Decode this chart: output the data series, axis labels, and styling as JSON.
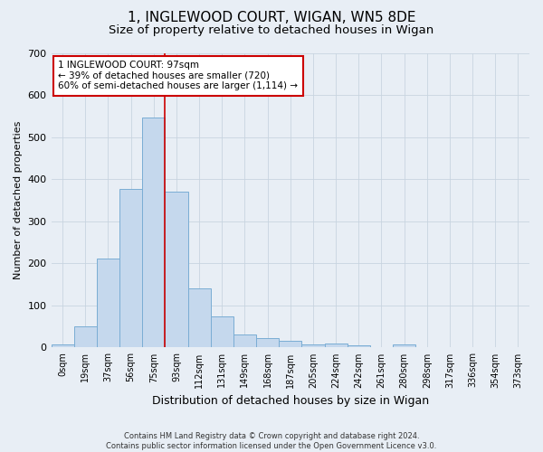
{
  "title": "1, INGLEWOOD COURT, WIGAN, WN5 8DE",
  "subtitle": "Size of property relative to detached houses in Wigan",
  "xlabel": "Distribution of detached houses by size in Wigan",
  "ylabel": "Number of detached properties",
  "bar_labels": [
    "0sqm",
    "19sqm",
    "37sqm",
    "56sqm",
    "75sqm",
    "93sqm",
    "112sqm",
    "131sqm",
    "149sqm",
    "168sqm",
    "187sqm",
    "205sqm",
    "224sqm",
    "242sqm",
    "261sqm",
    "280sqm",
    "298sqm",
    "317sqm",
    "336sqm",
    "354sqm",
    "373sqm"
  ],
  "bar_heights": [
    7,
    50,
    212,
    377,
    548,
    370,
    140,
    75,
    30,
    22,
    15,
    8,
    9,
    6,
    0,
    7,
    0,
    0,
    0,
    0,
    2
  ],
  "bar_color": "#c5d8ed",
  "bar_edgecolor": "#7aadd4",
  "vline_x_idx": 5,
  "vline_color": "#cc0000",
  "annotation_text": "1 INGLEWOOD COURT: 97sqm\n← 39% of detached houses are smaller (720)\n60% of semi-detached houses are larger (1,114) →",
  "annotation_box_facecolor": "#ffffff",
  "annotation_box_edgecolor": "#cc0000",
  "ylim": [
    0,
    700
  ],
  "yticks": [
    0,
    100,
    200,
    300,
    400,
    500,
    600,
    700
  ],
  "background_color": "#e8eef5",
  "plot_background": "#e8eef5",
  "title_fontsize": 11,
  "subtitle_fontsize": 9.5,
  "xlabel_fontsize": 9,
  "ylabel_fontsize": 8,
  "footer": "Contains HM Land Registry data © Crown copyright and database right 2024.\nContains public sector information licensed under the Open Government Licence v3.0.",
  "grid_color": "#c8d4e0"
}
